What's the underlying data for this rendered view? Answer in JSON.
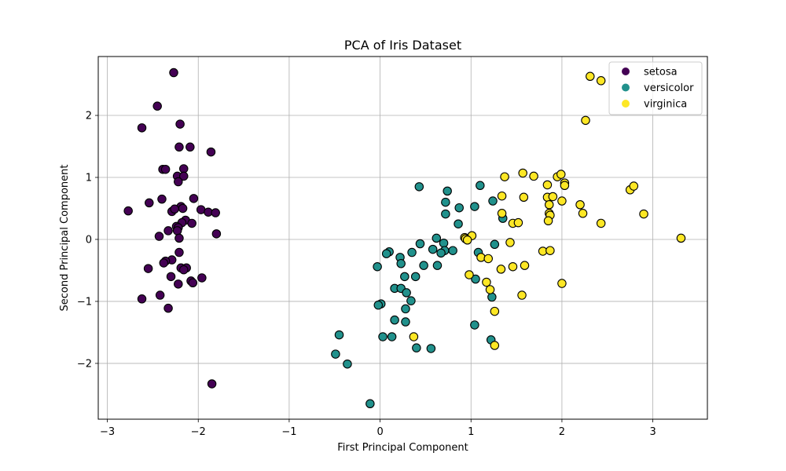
{
  "chart_data": {
    "type": "scatter",
    "title": "PCA of Iris Dataset",
    "xlabel": "First Principal Component",
    "ylabel": "Second Principal Component",
    "xlim": [
      -3.1,
      3.6
    ],
    "ylim": [
      -2.9,
      2.95
    ],
    "x_ticks": [
      -3,
      -2,
      -1,
      0,
      1,
      2,
      3
    ],
    "x_tick_labels": [
      "−3",
      "−2",
      "−1",
      "0",
      "1",
      "2",
      "3"
    ],
    "y_ticks": [
      -2,
      -1,
      0,
      1,
      2
    ],
    "y_tick_labels": [
      "−2",
      "−1",
      "0",
      "1",
      "2"
    ],
    "grid": true,
    "legend_position": "top-right",
    "series": [
      {
        "name": "setosa",
        "color": "#440154",
        "points": [
          [
            -2.27,
            2.69
          ],
          [
            -2.45,
            2.15
          ],
          [
            -2.62,
            1.8
          ],
          [
            -2.2,
            1.86
          ],
          [
            -2.21,
            1.49
          ],
          [
            -2.09,
            1.49
          ],
          [
            -1.86,
            1.41
          ],
          [
            -2.39,
            1.13
          ],
          [
            -2.36,
            1.13
          ],
          [
            -2.16,
            1.14
          ],
          [
            -2.23,
            1.02
          ],
          [
            -2.16,
            1.02
          ],
          [
            -2.22,
            0.93
          ],
          [
            -2.05,
            0.66
          ],
          [
            -2.4,
            0.65
          ],
          [
            -2.54,
            0.59
          ],
          [
            -2.77,
            0.46
          ],
          [
            -1.97,
            0.48
          ],
          [
            -1.89,
            0.44
          ],
          [
            -1.81,
            0.43
          ],
          [
            -2.19,
            0.53
          ],
          [
            -2.17,
            0.5
          ],
          [
            -2.29,
            0.45
          ],
          [
            -2.26,
            0.49
          ],
          [
            -2.14,
            0.31
          ],
          [
            -2.18,
            0.27
          ],
          [
            -2.07,
            0.26
          ],
          [
            -2.24,
            0.21
          ],
          [
            -2.22,
            0.19
          ],
          [
            -2.33,
            0.14
          ],
          [
            -2.23,
            0.14
          ],
          [
            -1.8,
            0.09
          ],
          [
            -2.43,
            0.05
          ],
          [
            -2.21,
            0.02
          ],
          [
            -2.21,
            -0.21
          ],
          [
            -2.29,
            -0.33
          ],
          [
            -2.36,
            -0.35
          ],
          [
            -2.38,
            -0.38
          ],
          [
            -2.19,
            -0.46
          ],
          [
            -2.13,
            -0.46
          ],
          [
            -2.16,
            -0.49
          ],
          [
            -2.55,
            -0.47
          ],
          [
            -2.3,
            -0.6
          ],
          [
            -1.96,
            -0.62
          ],
          [
            -2.08,
            -0.67
          ],
          [
            -2.06,
            -0.7
          ],
          [
            -2.22,
            -0.72
          ],
          [
            -2.42,
            -0.9
          ],
          [
            -2.62,
            -0.96
          ],
          [
            -2.33,
            -1.11
          ],
          [
            -1.85,
            -2.33
          ]
        ]
      },
      {
        "name": "versicolor",
        "color": "#21918c",
        "points": [
          [
            0.43,
            0.85
          ],
          [
            0.74,
            0.78
          ],
          [
            1.1,
            0.87
          ],
          [
            0.72,
            0.6
          ],
          [
            1.04,
            0.53
          ],
          [
            0.87,
            0.51
          ],
          [
            1.24,
            0.62
          ],
          [
            0.72,
            0.41
          ],
          [
            1.35,
            0.34
          ],
          [
            0.86,
            0.25
          ],
          [
            0.62,
            0.02
          ],
          [
            0.7,
            -0.06
          ],
          [
            0.44,
            -0.07
          ],
          [
            1.26,
            -0.08
          ],
          [
            0.58,
            -0.16
          ],
          [
            0.71,
            -0.18
          ],
          [
            0.67,
            -0.22
          ],
          [
            0.35,
            -0.21
          ],
          [
            0.1,
            -0.2
          ],
          [
            0.07,
            -0.23
          ],
          [
            1.08,
            -0.21
          ],
          [
            0.22,
            -0.29
          ],
          [
            0.23,
            -0.39
          ],
          [
            -0.03,
            -0.44
          ],
          [
            0.48,
            -0.42
          ],
          [
            0.63,
            -0.42
          ],
          [
            0.27,
            -0.6
          ],
          [
            0.39,
            -0.6
          ],
          [
            1.05,
            -0.64
          ],
          [
            0.16,
            -0.79
          ],
          [
            0.23,
            -0.79
          ],
          [
            0.29,
            -0.86
          ],
          [
            1.23,
            -0.93
          ],
          [
            0.34,
            -0.99
          ],
          [
            0.01,
            -1.04
          ],
          [
            -0.02,
            -1.06
          ],
          [
            0.28,
            -1.12
          ],
          [
            0.16,
            -1.3
          ],
          [
            0.28,
            -1.33
          ],
          [
            1.04,
            -1.38
          ],
          [
            -0.45,
            -1.54
          ],
          [
            0.03,
            -1.57
          ],
          [
            0.13,
            -1.57
          ],
          [
            1.22,
            -1.62
          ],
          [
            0.4,
            -1.75
          ],
          [
            0.56,
            -1.76
          ],
          [
            -0.49,
            -1.85
          ],
          [
            -0.36,
            -2.01
          ],
          [
            -0.11,
            -2.65
          ],
          [
            0.8,
            -0.18
          ]
        ]
      },
      {
        "name": "virginica",
        "color": "#fde725",
        "points": [
          [
            2.31,
            2.63
          ],
          [
            2.43,
            2.56
          ],
          [
            2.26,
            1.92
          ],
          [
            1.57,
            1.07
          ],
          [
            1.37,
            1.01
          ],
          [
            1.69,
            1.02
          ],
          [
            1.95,
            1.01
          ],
          [
            1.99,
            1.05
          ],
          [
            2.03,
            0.91
          ],
          [
            2.03,
            0.87
          ],
          [
            1.84,
            0.88
          ],
          [
            2.75,
            0.8
          ],
          [
            2.79,
            0.86
          ],
          [
            1.34,
            0.7
          ],
          [
            1.58,
            0.68
          ],
          [
            1.84,
            0.68
          ],
          [
            1.9,
            0.69
          ],
          [
            1.86,
            0.56
          ],
          [
            2.0,
            0.62
          ],
          [
            2.2,
            0.56
          ],
          [
            1.86,
            0.42
          ],
          [
            1.87,
            0.39
          ],
          [
            1.34,
            0.42
          ],
          [
            2.23,
            0.42
          ],
          [
            2.9,
            0.41
          ],
          [
            1.85,
            0.3
          ],
          [
            1.46,
            0.26
          ],
          [
            1.52,
            0.27
          ],
          [
            2.43,
            0.26
          ],
          [
            3.31,
            0.02
          ],
          [
            1.01,
            0.06
          ],
          [
            0.93,
            0.03
          ],
          [
            0.94,
            0.01
          ],
          [
            0.96,
            -0.01
          ],
          [
            1.43,
            -0.05
          ],
          [
            1.79,
            -0.19
          ],
          [
            1.87,
            -0.18
          ],
          [
            1.11,
            -0.29
          ],
          [
            1.19,
            -0.31
          ],
          [
            1.33,
            -0.48
          ],
          [
            1.46,
            -0.44
          ],
          [
            1.59,
            -0.42
          ],
          [
            0.98,
            -0.57
          ],
          [
            1.17,
            -0.69
          ],
          [
            1.21,
            -0.81
          ],
          [
            1.56,
            -0.9
          ],
          [
            2.0,
            -0.71
          ],
          [
            1.26,
            -1.16
          ],
          [
            0.37,
            -1.57
          ],
          [
            1.26,
            -1.71
          ]
        ]
      }
    ]
  }
}
